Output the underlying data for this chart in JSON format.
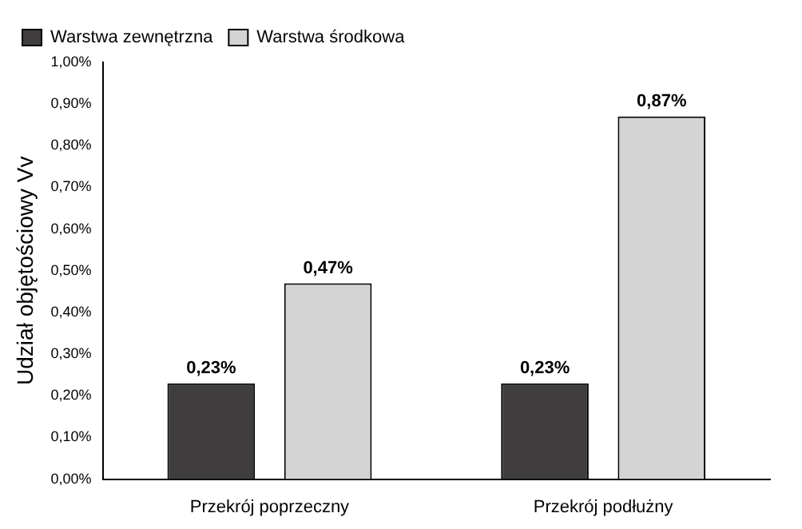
{
  "chart_data": {
    "type": "bar",
    "ylabel": "Udział objętościowy Vv",
    "categories": [
      "Przekrój poprzeczny",
      "Przekrój podłużny"
    ],
    "series": [
      {
        "name": "Warstwa zewnętrzna",
        "color": "#403d3e",
        "values": [
          0.23,
          0.23
        ],
        "value_labels": [
          "0,23%",
          "0,23%"
        ]
      },
      {
        "name": "Warstwa środkowa",
        "color": "#d4d4d4",
        "values": [
          0.47,
          0.87
        ],
        "value_labels": [
          "0,47%",
          "0,87%"
        ]
      }
    ],
    "ylim": [
      0,
      1
    ],
    "yticks": [
      {
        "value": 0,
        "label": "0,00%"
      },
      {
        "value": 0.1,
        "label": "0,10%"
      },
      {
        "value": 0.2,
        "label": "0,20%"
      },
      {
        "value": 0.3,
        "label": "0,30%"
      },
      {
        "value": 0.4,
        "label": "0,40%"
      },
      {
        "value": 0.5,
        "label": "0,50%"
      },
      {
        "value": 0.6,
        "label": "0,60%"
      },
      {
        "value": 0.7,
        "label": "0,70%"
      },
      {
        "value": 0.8,
        "label": "0,80%"
      },
      {
        "value": 0.9,
        "label": "0,90%"
      },
      {
        "value": 1,
        "label": "1,00%"
      }
    ],
    "grid": false,
    "legend": "top left"
  }
}
